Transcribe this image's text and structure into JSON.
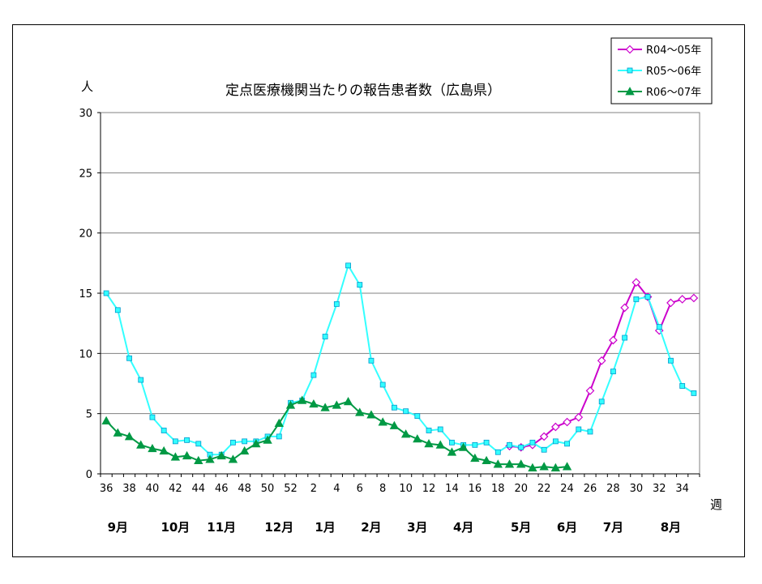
{
  "chart_data": {
    "type": "line",
    "title": "定点医療機関当たりの報告患者数（広島県）",
    "ylabel": "人",
    "xlabel": "週",
    "ylim": [
      0,
      30
    ],
    "yticks": [
      "0",
      "5",
      "10",
      "15",
      "20",
      "25",
      "30"
    ],
    "grid": true,
    "legend_position": "top-right",
    "x": [
      "36",
      "37",
      "38",
      "39",
      "40",
      "41",
      "42",
      "43",
      "44",
      "45",
      "46",
      "47",
      "48",
      "49",
      "50",
      "51",
      "52",
      "1",
      "2",
      "3",
      "4",
      "5",
      "6",
      "7",
      "8",
      "9",
      "10",
      "11",
      "12",
      "13",
      "14",
      "15",
      "16",
      "17",
      "18",
      "19",
      "20",
      "21",
      "22",
      "23",
      "24",
      "25",
      "26",
      "27",
      "28",
      "29",
      "30",
      "31",
      "32",
      "33",
      "34",
      "35"
    ],
    "x_tick_labels": [
      "36",
      "38",
      "40",
      "42",
      "44",
      "46",
      "48",
      "50",
      "52",
      "2",
      "4",
      "6",
      "8",
      "10",
      "12",
      "14",
      "16",
      "18",
      "20",
      "22",
      "24",
      "26",
      "28",
      "30",
      "32",
      "34"
    ],
    "months": [
      "9月",
      "10月",
      "11月",
      "12月",
      "1月",
      "2月",
      "3月",
      "4月",
      "5月",
      "6月",
      "7月",
      "8月"
    ],
    "series": [
      {
        "name": "R04～05年",
        "color": "#cc00cc",
        "marker": "diamond-open",
        "values": [
          null,
          null,
          null,
          null,
          null,
          null,
          null,
          null,
          null,
          null,
          null,
          null,
          null,
          null,
          null,
          null,
          null,
          null,
          null,
          null,
          null,
          null,
          null,
          null,
          null,
          null,
          null,
          null,
          null,
          null,
          null,
          null,
          null,
          null,
          null,
          2.3,
          2.2,
          2.4,
          3.1,
          3.9,
          4.3,
          4.7,
          6.9,
          9.4,
          11.1,
          13.8,
          15.9,
          14.7,
          11.9,
          14.2,
          14.5,
          14.6
        ]
      },
      {
        "name": "R05～06年",
        "color": "#33ffff",
        "marker": "square",
        "values": [
          15.0,
          13.6,
          9.6,
          7.8,
          4.7,
          3.6,
          2.7,
          2.8,
          2.5,
          1.6,
          1.6,
          2.6,
          2.7,
          2.7,
          3.1,
          3.1,
          5.9,
          6.1,
          8.2,
          11.4,
          14.1,
          17.3,
          15.7,
          9.4,
          7.4,
          5.5,
          5.2,
          4.8,
          3.6,
          3.7,
          2.6,
          2.4,
          2.4,
          2.6,
          1.8,
          2.4,
          2.2,
          2.6,
          2.0,
          2.7,
          2.5,
          3.7,
          3.5,
          6.0,
          8.5,
          11.3,
          14.5,
          14.7,
          12.2,
          9.4,
          7.3,
          6.7
        ]
      },
      {
        "name": "R06～07年",
        "color": "#009944",
        "marker": "triangle",
        "values": [
          4.4,
          3.4,
          3.1,
          2.4,
          2.1,
          1.9,
          1.4,
          1.5,
          1.1,
          1.2,
          1.5,
          1.2,
          1.9,
          2.5,
          2.8,
          4.2,
          5.7,
          6.1,
          5.8,
          5.5,
          5.7,
          6.0,
          5.1,
          4.9,
          4.3,
          4.0,
          3.3,
          2.9,
          2.5,
          2.4,
          1.8,
          2.2,
          1.3,
          1.1,
          0.8,
          0.8,
          0.8,
          0.5,
          0.6,
          0.5,
          0.6,
          null,
          null,
          null,
          null,
          null,
          null,
          null,
          null,
          null,
          null,
          null
        ]
      }
    ]
  }
}
